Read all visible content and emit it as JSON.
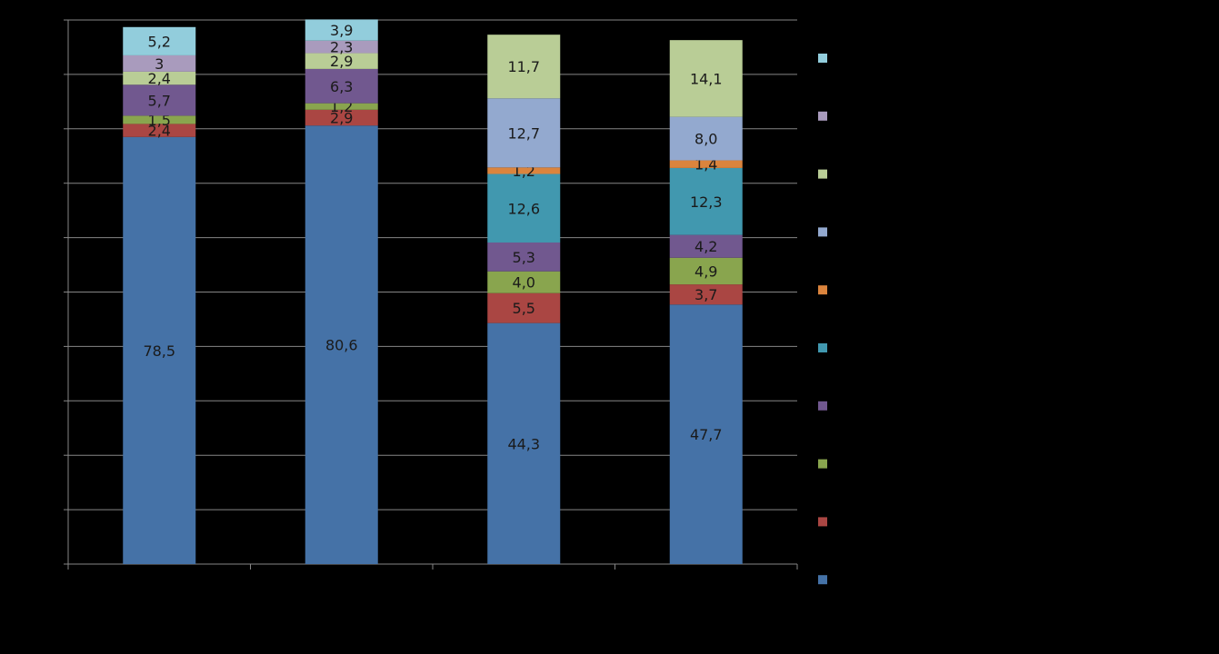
{
  "chart_data": {
    "type": "bar",
    "stacked": true,
    "categories": [
      "",
      "",
      "",
      ""
    ],
    "ylim": [
      0,
      100
    ],
    "grid": true,
    "legend_position": "right",
    "series": [
      {
        "color": "#4572A7",
        "values": [
          78.5,
          80.6,
          44.3,
          47.7
        ],
        "labels": [
          "78,5",
          "80,6",
          "44,3",
          "47,7"
        ]
      },
      {
        "color": "#AA4643",
        "values": [
          2.4,
          2.9,
          5.5,
          3.7
        ],
        "labels": [
          "2,4",
          "2,9",
          "5,5",
          "3,7"
        ]
      },
      {
        "color": "#89A54E",
        "values": [
          1.5,
          1.2,
          4.0,
          4.9
        ],
        "labels": [
          "1,5",
          "1,2",
          "4,0",
          "4,9"
        ]
      },
      {
        "color": "#71588F",
        "values": [
          5.7,
          6.3,
          5.3,
          4.2
        ],
        "labels": [
          "5,7",
          "6,3",
          "5,3",
          "4,2"
        ]
      },
      {
        "color": "#4198AF",
        "values": [
          0,
          0,
          12.6,
          12.3
        ],
        "labels": [
          "",
          "",
          "12,6",
          "12,3"
        ]
      },
      {
        "color": "#DB843D",
        "values": [
          0,
          0,
          1.2,
          1.4
        ],
        "labels": [
          "",
          "",
          "1,2",
          "1,4"
        ]
      },
      {
        "color": "#93A9CF",
        "values": [
          0,
          0,
          12.7,
          8.0
        ],
        "labels": [
          "",
          "",
          "12,7",
          "8,0"
        ]
      },
      {
        "color": "#B9CD96",
        "values": [
          2.4,
          2.9,
          11.7,
          14.1
        ],
        "labels": [
          "2,4",
          "2,9",
          "11,7",
          "14,1"
        ]
      },
      {
        "color": "#A99BBD",
        "values": [
          3.0,
          2.3,
          0,
          0
        ],
        "labels": [
          "3",
          "2,3",
          "",
          ""
        ]
      },
      {
        "color": "#92CDDC",
        "values": [
          5.2,
          3.9,
          0,
          0
        ],
        "labels": [
          "5,2",
          "3,9",
          "",
          ""
        ]
      }
    ]
  }
}
